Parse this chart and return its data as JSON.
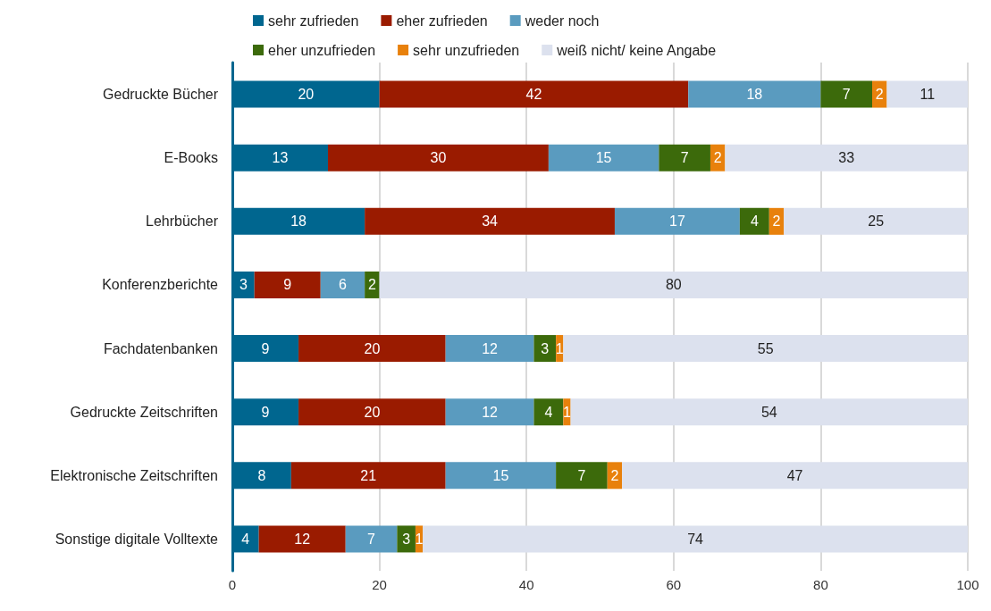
{
  "chart_data": {
    "type": "bar",
    "orientation": "horizontal",
    "stacked": true,
    "grid": "x",
    "legend": "top",
    "categories": [
      "Gedruckte Bücher",
      "E-Books",
      "Lehrbücher",
      "Konferenzberichte",
      "Fachdatenbanken",
      "Gedruckte Zeitschriften",
      "Elektronische Zeitschriften",
      "Sonstige digitale Volltexte"
    ],
    "series": [
      {
        "name": "sehr zufrieden",
        "color": "#00668f",
        "values": [
          20,
          13,
          18,
          3,
          9,
          9,
          8,
          3.6
        ],
        "value_labels": [
          "20",
          "13",
          "18",
          "3",
          "9",
          "9",
          "8",
          "4"
        ]
      },
      {
        "name": "eher zufrieden",
        "color": "#9a1b00",
        "values": [
          42,
          30,
          34,
          9,
          20,
          20,
          21,
          11.8
        ],
        "value_labels": [
          "42",
          "30",
          "34",
          "9",
          "20",
          "20",
          "21",
          "12"
        ]
      },
      {
        "name": "weder noch",
        "color": "#5a9bbf",
        "values": [
          18,
          15,
          17,
          6,
          12,
          12,
          15,
          7
        ],
        "value_labels": [
          "18",
          "15",
          "17",
          "6",
          "12",
          "12",
          "15",
          "7"
        ]
      },
      {
        "name": "eher unzufrieden",
        "color": "#3c6a0b",
        "values": [
          7,
          7,
          4,
          2,
          3,
          4,
          7,
          2.5
        ],
        "value_labels": [
          "7",
          "7",
          "4",
          "2",
          "3",
          "4",
          "7",
          "3"
        ]
      },
      {
        "name": "sehr unzufrieden",
        "color": "#e8810c",
        "values": [
          2,
          2,
          2,
          null,
          1,
          1,
          2,
          1
        ],
        "value_labels": [
          "2",
          "2",
          "2",
          null,
          "1",
          "1",
          "2",
          "1"
        ]
      },
      {
        "name": "weiß nicht/ keine Angabe",
        "color": "#dce1ee",
        "values": [
          11,
          33,
          25,
          80,
          55,
          54,
          47,
          74.1
        ],
        "value_labels": [
          "11",
          "33",
          "25",
          "80",
          "55",
          "54",
          "47",
          "74"
        ]
      }
    ],
    "xlim": [
      0,
      100
    ],
    "xticks": [
      0,
      20,
      40,
      60,
      80,
      100
    ]
  }
}
